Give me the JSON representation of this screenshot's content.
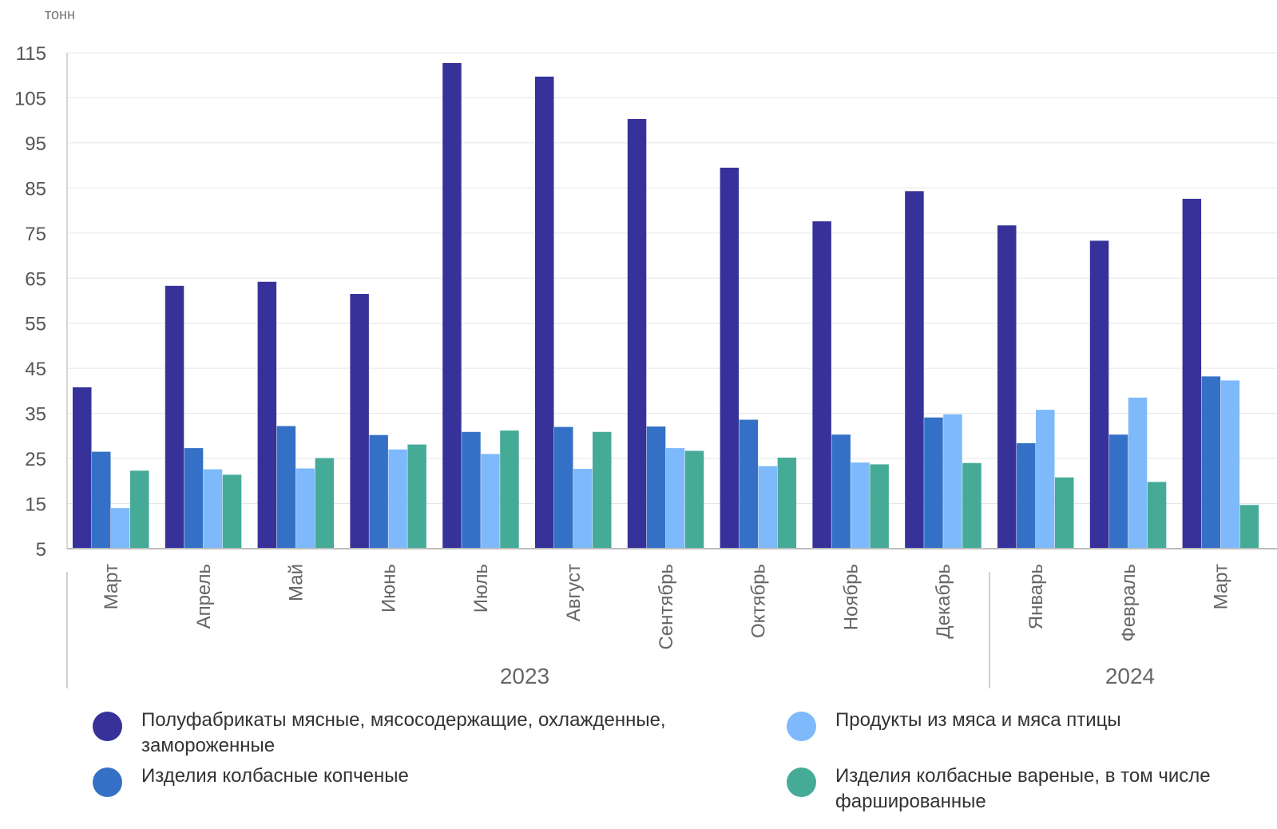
{
  "chart_data": {
    "type": "bar",
    "unit_label": "тонн",
    "ylim": [
      5,
      115
    ],
    "yticks": [
      5,
      15,
      25,
      35,
      45,
      55,
      65,
      75,
      85,
      95,
      105,
      115
    ],
    "grid": true,
    "categories": [
      "Март",
      "Апрель",
      "Май",
      "Июнь",
      "Июль",
      "Август",
      "Сентябрь",
      "Октябрь",
      "Ноябрь",
      "Декабрь",
      "Январь",
      "Февраль",
      "Март"
    ],
    "groups": [
      {
        "label": "2023",
        "start": 0,
        "end": 9
      },
      {
        "label": "2024",
        "start": 10,
        "end": 12
      }
    ],
    "series": [
      {
        "name": "Полуфабрикаты мясные, мясосодержащие, охлажденные, замороженные",
        "color": "#37329a",
        "values": [
          40.8,
          63.3,
          64.2,
          61.5,
          112.7,
          109.7,
          100.3,
          89.5,
          77.6,
          84.3,
          76.7,
          73.3,
          82.6
        ]
      },
      {
        "name": "Изделия колбасные копченые",
        "color": "#3471c6",
        "values": [
          26.5,
          27.3,
          32.2,
          30.2,
          30.9,
          32.0,
          32.1,
          33.6,
          30.3,
          34.1,
          28.4,
          30.3,
          43.2
        ]
      },
      {
        "name": "Продукты из мяса и мяса птицы",
        "color": "#7db9fb",
        "values": [
          14.0,
          22.6,
          22.8,
          27.0,
          26.0,
          22.7,
          27.3,
          23.3,
          24.1,
          34.8,
          35.8,
          38.5,
          42.3
        ]
      },
      {
        "name": "Изделия колбасные вареные, в том числе фаршированные",
        "color": "#45ab97",
        "values": [
          22.3,
          21.4,
          25.1,
          28.1,
          31.2,
          30.9,
          26.7,
          25.2,
          23.7,
          24.0,
          20.8,
          19.8,
          14.7
        ]
      }
    ]
  }
}
